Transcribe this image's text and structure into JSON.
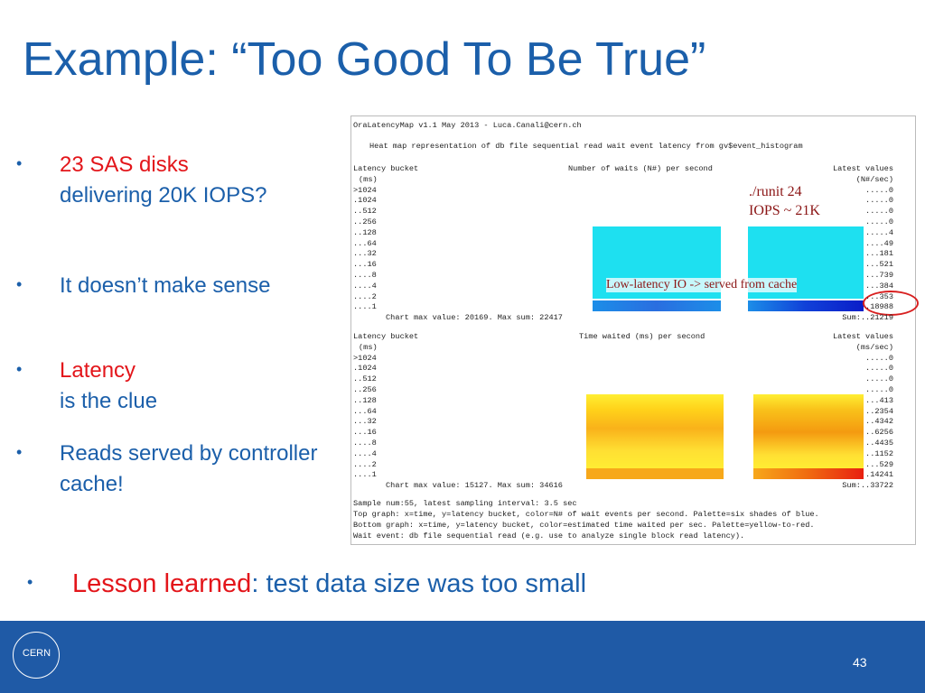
{
  "header": {
    "title": "Example: “Too Good To Be True”"
  },
  "bullets": [
    {
      "highlight": "23 SAS disks",
      "rest": "delivering 20K IOPS?"
    },
    {
      "rest": "It doesn’t make sense"
    },
    {
      "highlight": "Latency",
      "rest": "is the clue"
    },
    {
      "rest": "Reads served by controller cache!"
    },
    {
      "highlight": "Lesson learned",
      "rest": ": test data size was too small"
    }
  ],
  "screenshot": {
    "header_lines": [
      "OraLatencyMap v1.1 May 2013 - Luca.Canali@cern.ch",
      "Heat map representation of db file sequential read wait event latency from gv$event_histogram"
    ],
    "panels": [
      {
        "bucket_title": "Latency bucket",
        "bucket_unit": "(ms)",
        "chart_title": "Number of waits (N#) per second",
        "values_title": "Latest values",
        "values_unit": "(N#/sec)",
        "buckets": [
          ">1024",
          ".1024",
          "..512",
          "..256",
          "..128",
          "...64",
          "...32",
          "...16",
          "....8",
          "....4",
          "....2",
          "....1"
        ],
        "values": [
          ".....0",
          ".....0",
          ".....0",
          ".....0",
          ".....4",
          "....49",
          "...181",
          "...521",
          "...739",
          "...384",
          "...353",
          ".18988"
        ],
        "max_line": "Chart max value: 20169. Max sum: 22417",
        "sum": "Sum:..21219"
      },
      {
        "bucket_title": "Latency bucket",
        "bucket_unit": "(ms)",
        "chart_title": "Time waited (ms) per second",
        "values_title": "Latest values",
        "values_unit": "(ms/sec)",
        "buckets": [
          ">1024",
          ".1024",
          "..512",
          "..256",
          "..128",
          "...64",
          "...32",
          "...16",
          "....8",
          "....4",
          "....2",
          "....1"
        ],
        "values": [
          ".....0",
          ".....0",
          ".....0",
          ".....0",
          "...413",
          "..2354",
          "..4342",
          "..6256",
          "..4435",
          "..1152",
          "...529",
          ".14241"
        ],
        "max_line": "Chart max value: 15127. Max sum: 34616",
        "sum": "Sum:..33722"
      }
    ],
    "footer_lines": [
      "Sample num:55, latest sampling interval: 3.5 sec",
      "Top graph: x=time, y=latency bucket, color=N# of wait events per second. Palette=six shades of blue.",
      "Bottom graph: x=time, y=latency bucket, color=estimated time waited per sec. Palette=yellow-to-red.",
      "Wait event: db file sequential read (e.g. use to analyze single block read latency)."
    ],
    "annotations": [
      "./runit 24",
      "IOPS ~ 21K",
      "Low-latency IO -> served from cache"
    ]
  },
  "footer": {
    "logo": "CERN",
    "page_number": "43"
  }
}
